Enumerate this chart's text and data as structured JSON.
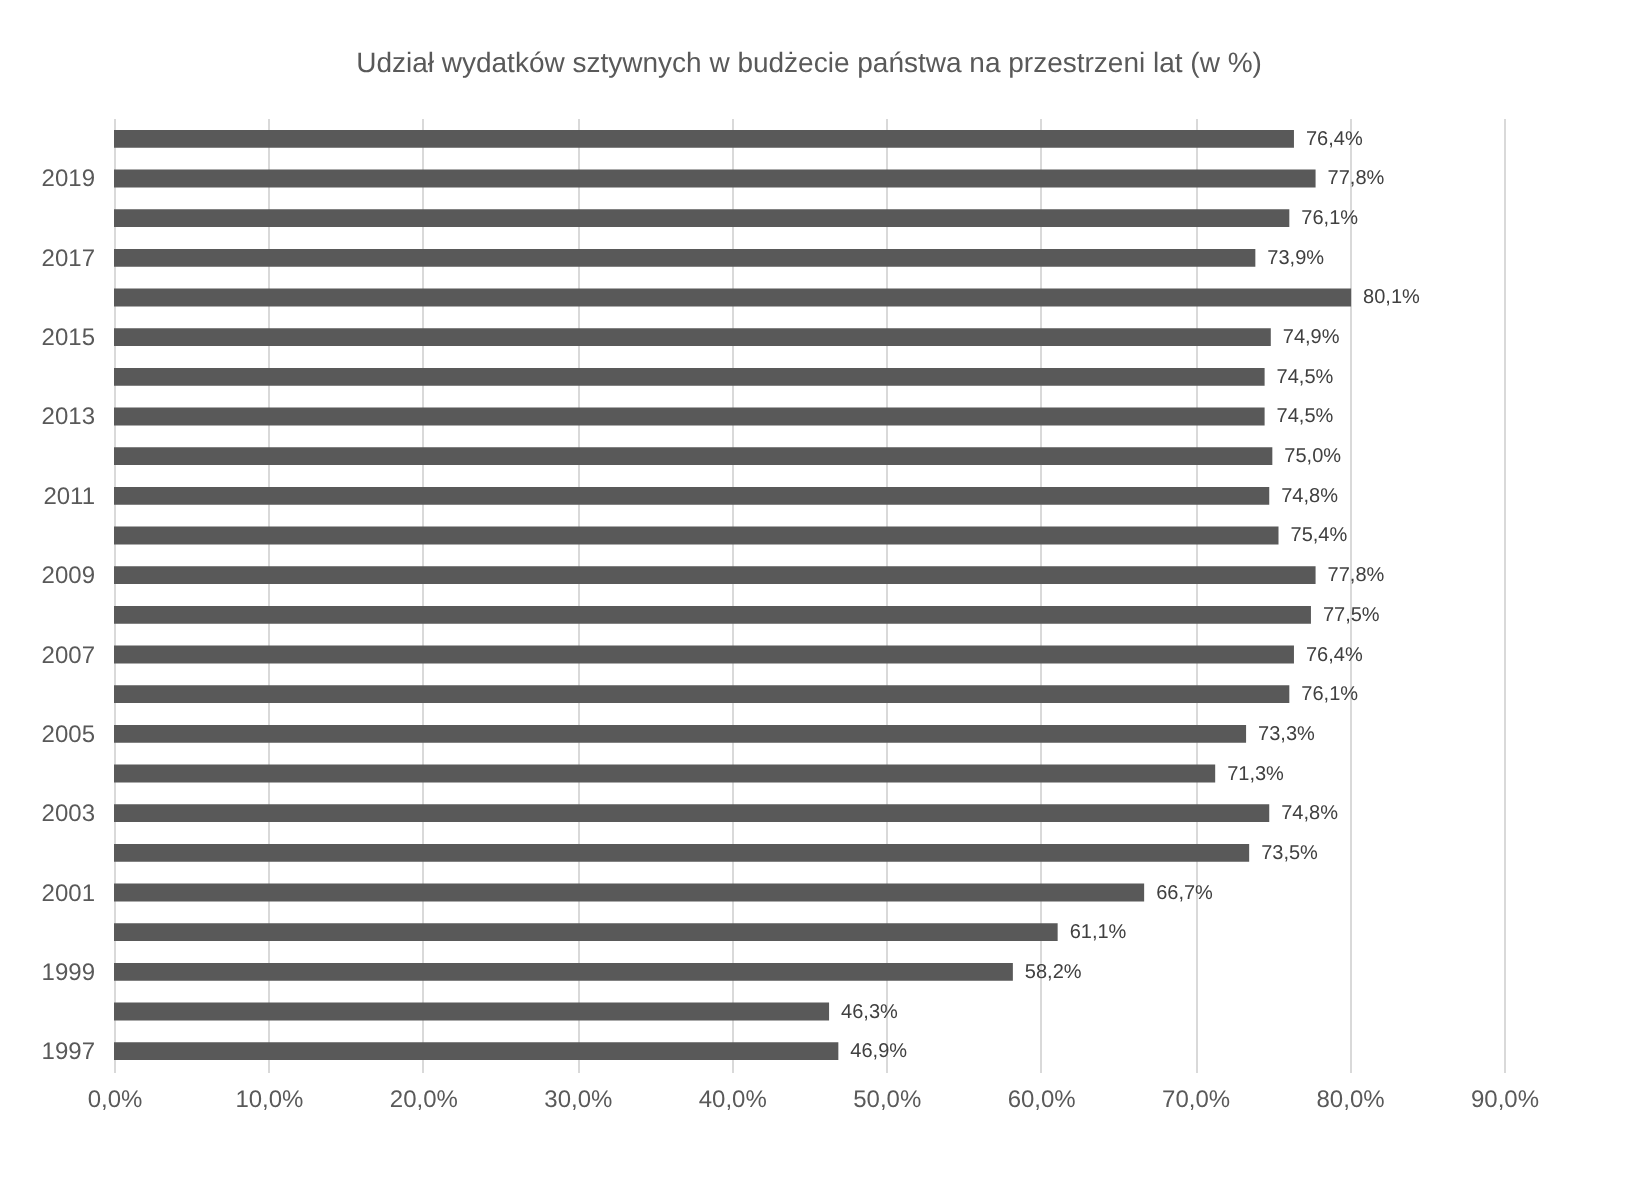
{
  "chart_data": {
    "type": "bar",
    "orientation": "horizontal",
    "title": "Udział wydatków sztywnych w budżecie państwa na przestrzeni lat (w %)",
    "categories": [
      null,
      "2019",
      null,
      "2017",
      null,
      "2015",
      null,
      "2013",
      null,
      "2011",
      null,
      "2009",
      null,
      "2007",
      null,
      "2005",
      null,
      "2003",
      null,
      "2001",
      null,
      "1999",
      null,
      "1997"
    ],
    "values": [
      76.4,
      77.8,
      76.1,
      73.9,
      80.1,
      74.9,
      74.5,
      74.5,
      75.0,
      74.8,
      75.4,
      77.8,
      77.5,
      76.4,
      76.1,
      73.3,
      71.3,
      74.8,
      73.5,
      66.7,
      61.1,
      58.2,
      46.3,
      46.9
    ],
    "value_labels": [
      "76,4%",
      "77,8%",
      "76,1%",
      "73,9%",
      "80,1%",
      "74,9%",
      "74,5%",
      "74,5%",
      "75,0%",
      "74,8%",
      "75,4%",
      "77,8%",
      "77,5%",
      "76,4%",
      "76,1%",
      "73,3%",
      "71,3%",
      "74,8%",
      "73,5%",
      "66,7%",
      "61,1%",
      "58,2%",
      "46,3%",
      "46,9%"
    ],
    "color": "#595959",
    "xlim": [
      0,
      90
    ],
    "xticks": [
      {
        "value": 0,
        "label": "0,0%"
      },
      {
        "value": 10,
        "label": "10,0%"
      },
      {
        "value": 20,
        "label": "20,0%"
      },
      {
        "value": 30,
        "label": "30,0%"
      },
      {
        "value": 40,
        "label": "40,0%"
      },
      {
        "value": 50,
        "label": "50,0%"
      },
      {
        "value": 60,
        "label": "60,0%"
      },
      {
        "value": 70,
        "label": "70,0%"
      },
      {
        "value": 80,
        "label": "80,0%"
      },
      {
        "value": 90,
        "label": "90,0%"
      }
    ],
    "grid": "x"
  }
}
